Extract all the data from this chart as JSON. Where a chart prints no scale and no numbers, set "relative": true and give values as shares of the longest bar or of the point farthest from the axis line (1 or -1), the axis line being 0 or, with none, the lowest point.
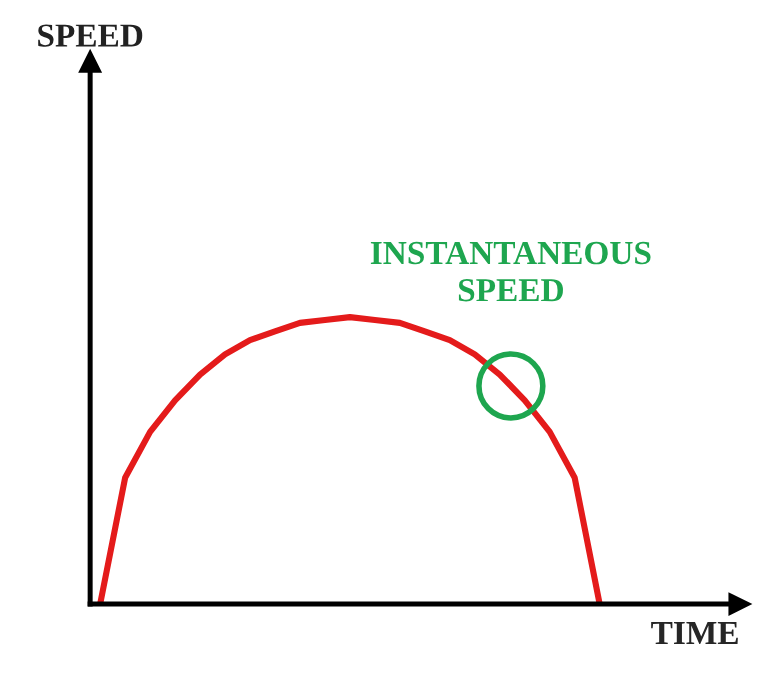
{
  "chart_data": {
    "type": "line",
    "relative": true,
    "xlabel": "TIME",
    "categories": [
      null,
      null,
      null,
      null,
      null,
      null,
      null,
      null,
      null,
      null,
      null,
      null,
      null,
      null,
      null,
      null,
      null,
      null,
      null,
      null,
      null
    ],
    "series": [
      {
        "color": "#e41b1b",
        "values": [
          0,
          0.44,
          0.6,
          0.71,
          0.8,
          0.87,
          0.92,
          0.95,
          0.98,
          0.99,
          1,
          0.99,
          0.98,
          0.95,
          0.92,
          0.87,
          0.8,
          0.71,
          0.6,
          0.44,
          0
        ]
      }
    ],
    "annotations": [
      "SPEED",
      {
        "text": "INSTANTANEOUS\nSPEED",
        "y": 0.76
      }
    ],
    "marker": "none",
    "line_style": "solid"
  }
}
